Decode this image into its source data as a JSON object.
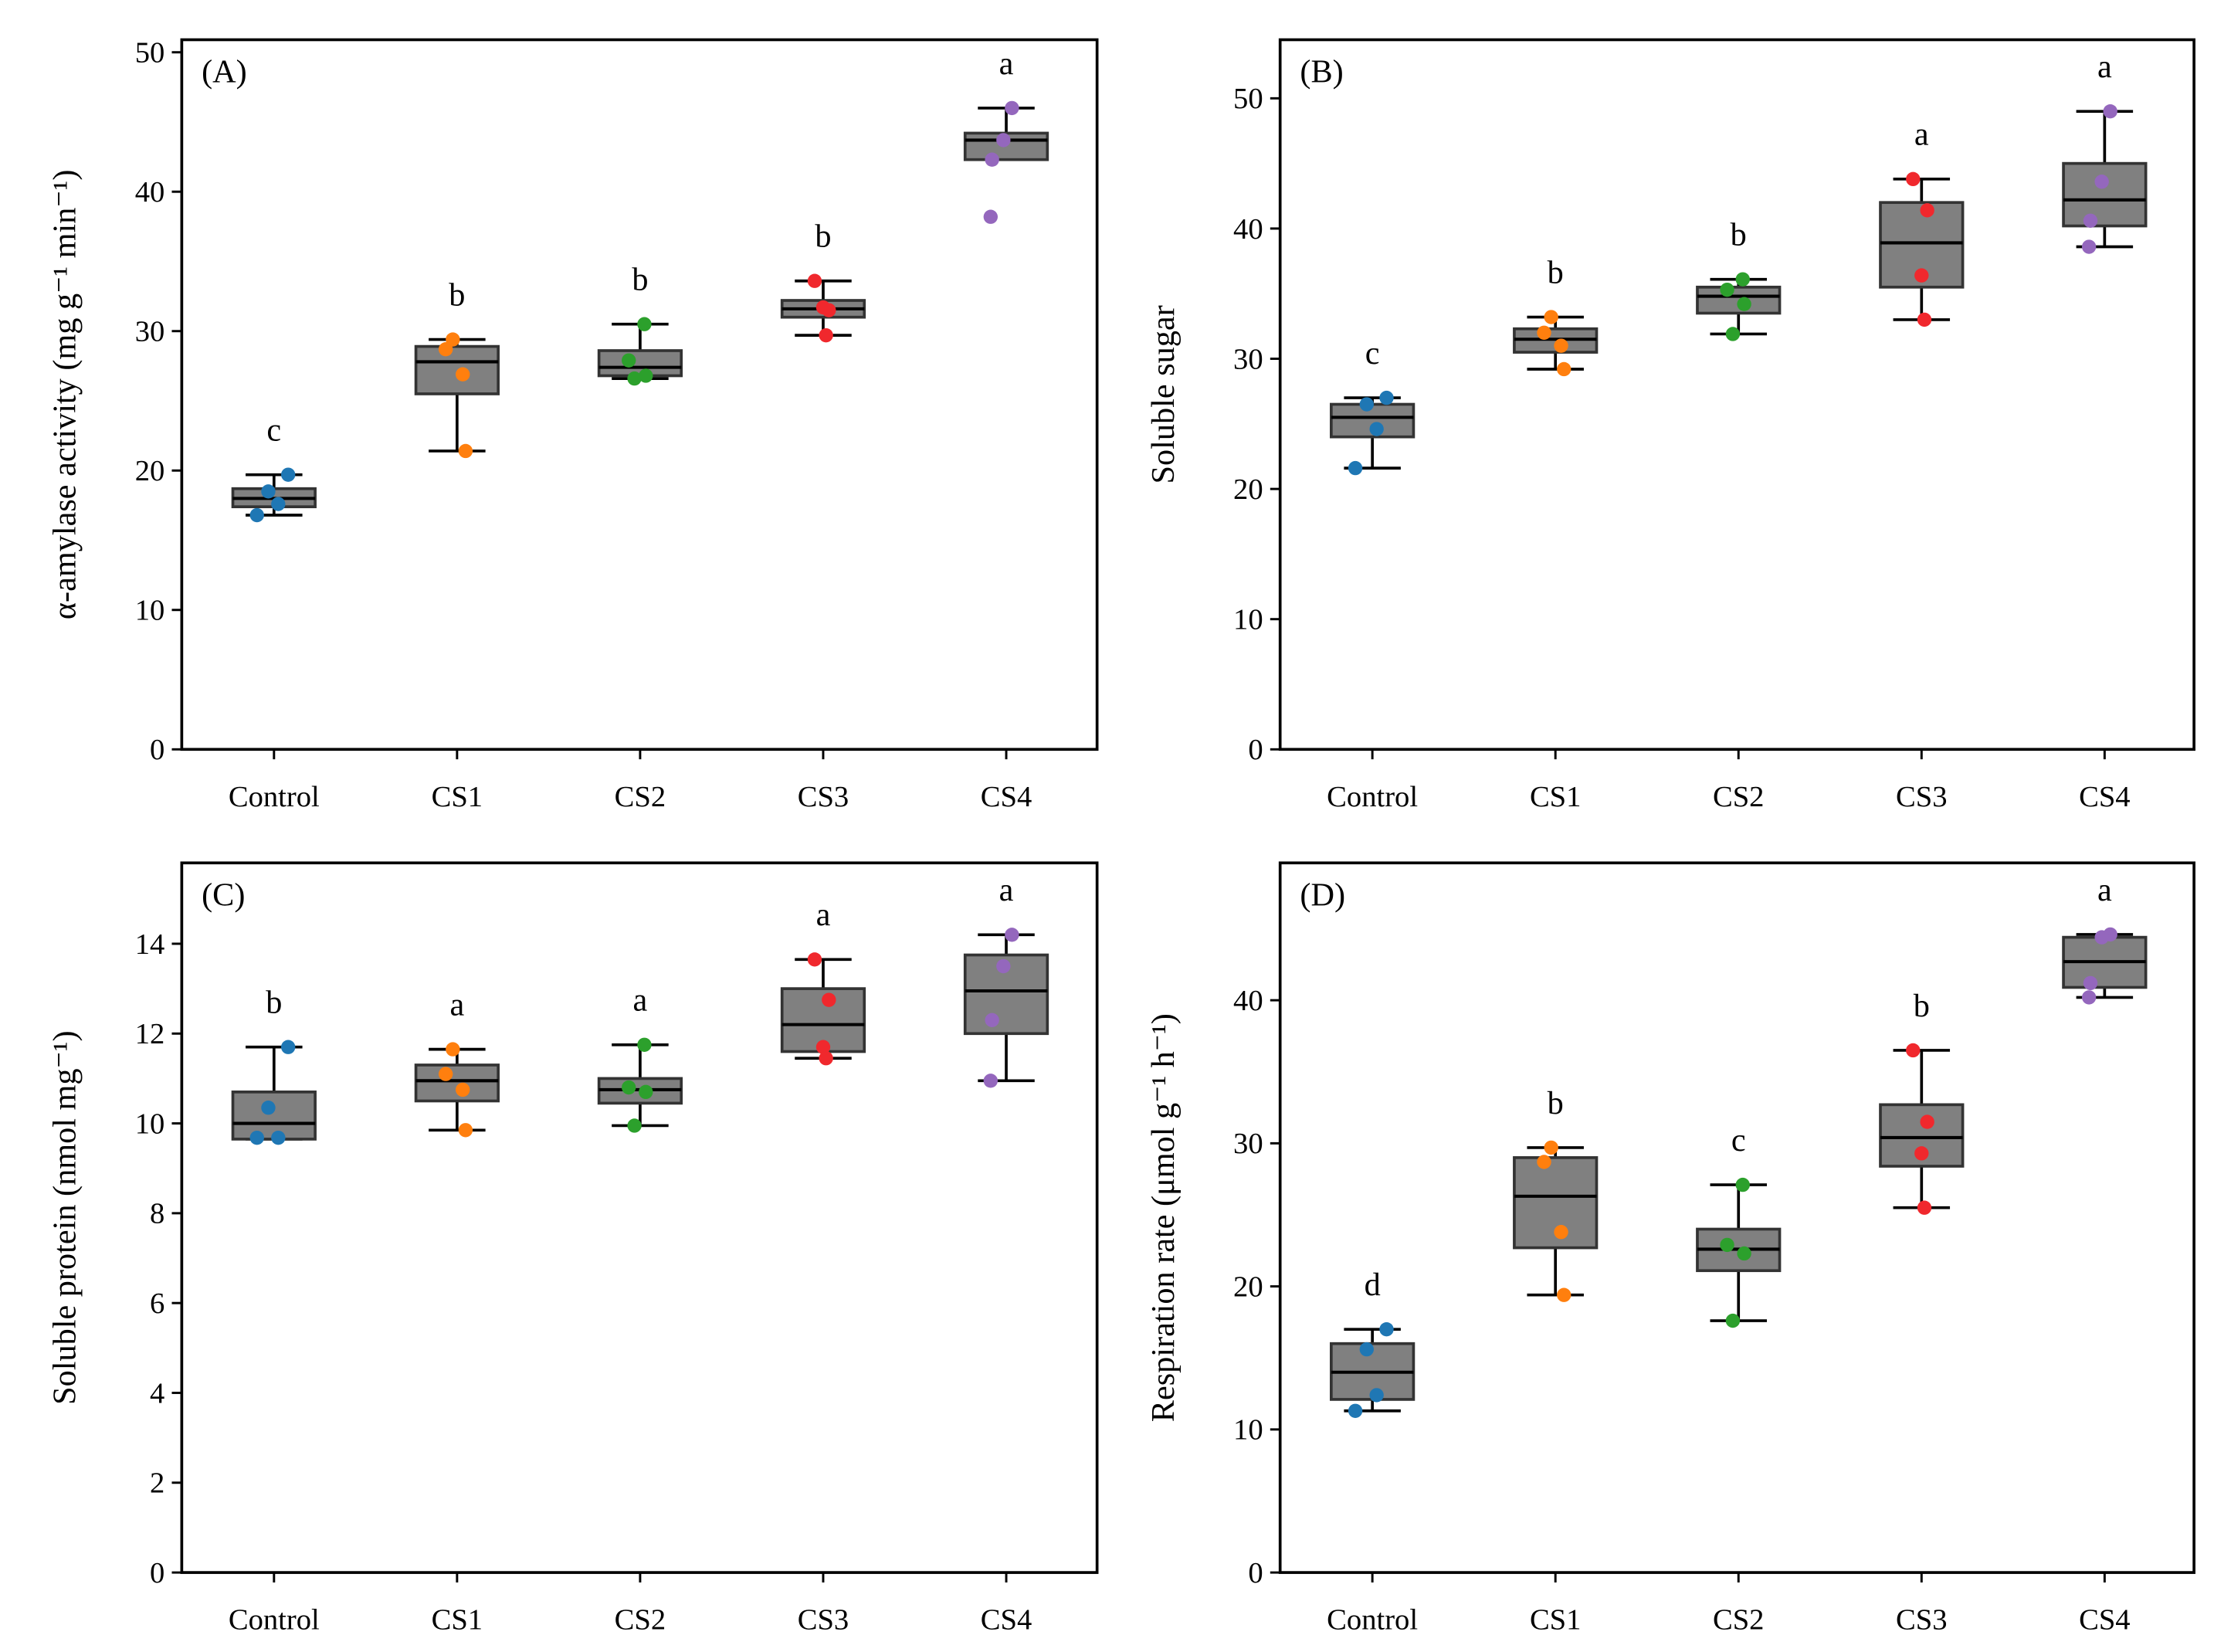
{
  "chart_data": [
    {
      "type": "box",
      "panel_label": "(A)",
      "ylabel": "α-amylase activity (mg g⁻¹ min⁻¹)",
      "categories": [
        "Control",
        "CS1",
        "CS2",
        "CS3",
        "CS4"
      ],
      "ylim": [
        0,
        50.9
      ],
      "yticks": [
        0,
        10,
        20,
        30,
        40,
        50
      ],
      "letters": [
        "c",
        "b",
        "b",
        "b",
        "a"
      ],
      "boxes": [
        {
          "whislo": 16.8,
          "q1": 17.4,
          "med": 18.0,
          "q3": 18.7,
          "whishi": 19.7,
          "points": [
            19.7,
            18.5,
            17.6,
            16.8
          ]
        },
        {
          "whislo": 21.4,
          "q1": 25.5,
          "med": 27.8,
          "q3": 28.9,
          "whishi": 29.4,
          "points": [
            29.4,
            28.7,
            26.9,
            21.4
          ]
        },
        {
          "whislo": 26.6,
          "q1": 26.8,
          "med": 27.4,
          "q3": 28.6,
          "whishi": 30.5,
          "points": [
            30.5,
            27.9,
            26.8,
            26.6
          ]
        },
        {
          "whislo": 29.7,
          "q1": 31.0,
          "med": 31.6,
          "q3": 32.2,
          "whishi": 33.6,
          "points": [
            33.6,
            31.5,
            31.7,
            29.7
          ]
        },
        {
          "whislo": 42.3,
          "q1": 42.3,
          "med": 43.7,
          "q3": 44.2,
          "whishi": 46.0,
          "points": [
            46.0,
            43.7,
            42.3,
            38.2
          ]
        }
      ]
    },
    {
      "type": "box",
      "panel_label": "(B)",
      "ylabel": "Soluble sugar",
      "categories": [
        "Control",
        "CS1",
        "CS2",
        "CS3",
        "CS4"
      ],
      "ylim": [
        0,
        54.5
      ],
      "yticks": [
        0,
        10,
        20,
        30,
        40,
        50
      ],
      "letters": [
        "c",
        "b",
        "b",
        "a",
        "a"
      ],
      "boxes": [
        {
          "whislo": 21.6,
          "q1": 24.0,
          "med": 25.5,
          "q3": 26.5,
          "whishi": 27.0,
          "points": [
            27.0,
            26.5,
            24.6,
            21.6
          ]
        },
        {
          "whislo": 29.2,
          "q1": 30.5,
          "med": 31.5,
          "q3": 32.3,
          "whishi": 33.2,
          "points": [
            33.2,
            32.0,
            31.0,
            29.2
          ]
        },
        {
          "whislo": 31.9,
          "q1": 33.5,
          "med": 34.8,
          "q3": 35.5,
          "whishi": 36.1,
          "points": [
            36.1,
            35.3,
            34.2,
            31.9
          ]
        },
        {
          "whislo": 33.0,
          "q1": 35.5,
          "med": 38.9,
          "q3": 42.0,
          "whishi": 43.8,
          "points": [
            43.8,
            41.4,
            36.4,
            33.0
          ]
        },
        {
          "whislo": 38.6,
          "q1": 40.2,
          "med": 42.2,
          "q3": 45.0,
          "whishi": 49.0,
          "points": [
            49.0,
            43.6,
            40.6,
            38.6
          ]
        }
      ]
    },
    {
      "type": "box",
      "panel_label": "(C)",
      "ylabel": "Soluble protein (nmol mg⁻¹)",
      "categories": [
        "Control",
        "CS1",
        "CS2",
        "CS3",
        "CS4"
      ],
      "ylim": [
        0,
        15.8
      ],
      "yticks": [
        0,
        2,
        4,
        6,
        8,
        10,
        12,
        14
      ],
      "letters": [
        "b",
        "a",
        "a",
        "a",
        "a"
      ],
      "boxes": [
        {
          "whislo": 9.65,
          "q1": 9.65,
          "med": 10.0,
          "q3": 10.7,
          "whishi": 11.7,
          "points": [
            11.7,
            10.35,
            9.68,
            9.68
          ]
        },
        {
          "whislo": 9.85,
          "q1": 10.5,
          "med": 10.95,
          "q3": 11.3,
          "whishi": 11.65,
          "points": [
            11.65,
            11.1,
            10.75,
            9.85
          ]
        },
        {
          "whislo": 9.95,
          "q1": 10.45,
          "med": 10.75,
          "q3": 11.0,
          "whishi": 11.75,
          "points": [
            11.75,
            10.8,
            10.7,
            9.95
          ]
        },
        {
          "whislo": 11.45,
          "q1": 11.6,
          "med": 12.2,
          "q3": 13.0,
          "whishi": 13.65,
          "points": [
            13.65,
            12.75,
            11.7,
            11.45
          ]
        },
        {
          "whislo": 10.95,
          "q1": 12.0,
          "med": 12.95,
          "q3": 13.75,
          "whishi": 14.2,
          "points": [
            14.2,
            13.5,
            12.3,
            10.95
          ]
        }
      ]
    },
    {
      "type": "box",
      "panel_label": "(D)",
      "ylabel": "Respiration rate (μmol g⁻¹ h⁻¹)",
      "categories": [
        "Control",
        "CS1",
        "CS2",
        "CS3",
        "CS4"
      ],
      "ylim": [
        0,
        49.6
      ],
      "yticks": [
        0,
        10,
        20,
        30,
        40
      ],
      "letters": [
        "d",
        "b",
        "c",
        "b",
        "a"
      ],
      "boxes": [
        {
          "whislo": 11.3,
          "q1": 12.1,
          "med": 14.0,
          "q3": 16.0,
          "whishi": 17.0,
          "points": [
            17.0,
            15.6,
            12.4,
            11.3
          ]
        },
        {
          "whislo": 19.4,
          "q1": 22.7,
          "med": 26.3,
          "q3": 29.0,
          "whishi": 29.7,
          "points": [
            29.7,
            28.7,
            23.8,
            19.4
          ]
        },
        {
          "whislo": 17.6,
          "q1": 21.1,
          "med": 22.6,
          "q3": 24.0,
          "whishi": 27.1,
          "points": [
            27.1,
            22.9,
            22.3,
            17.6
          ]
        },
        {
          "whislo": 25.5,
          "q1": 28.4,
          "med": 30.4,
          "q3": 32.7,
          "whishi": 36.5,
          "points": [
            36.5,
            31.5,
            29.3,
            25.5
          ]
        },
        {
          "whislo": 40.2,
          "q1": 40.9,
          "med": 42.7,
          "q3": 44.4,
          "whishi": 44.6,
          "points": [
            44.6,
            44.4,
            41.2,
            40.2
          ]
        }
      ]
    }
  ],
  "colors": {
    "box_fill": "#808080",
    "categories": [
      "#1f77b4",
      "#ff7f0e",
      "#2ca02c",
      "#f0282d",
      "#9467bd"
    ]
  }
}
